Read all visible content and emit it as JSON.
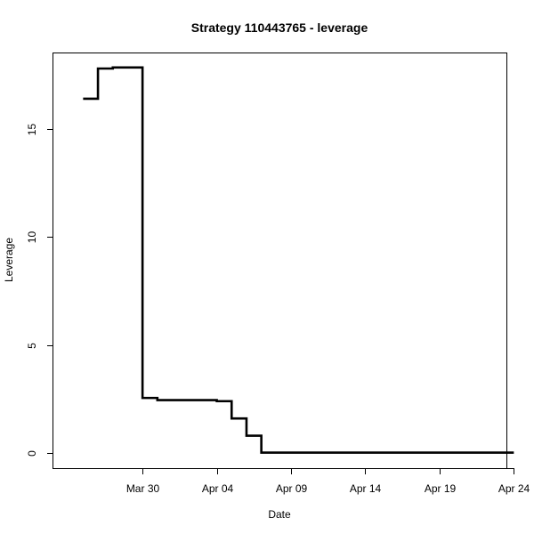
{
  "chart_data": {
    "type": "line",
    "title": "Strategy 110443765 - leverage",
    "xlabel": "Date",
    "ylabel": "Leverage",
    "step": true,
    "grid": false,
    "legend": "none",
    "xlim": [
      -2.0,
      28.5
    ],
    "ylim": [
      -0.7,
      18.5
    ],
    "x_ticks": [
      {
        "value": 4,
        "label": "Mar 30"
      },
      {
        "value": 9,
        "label": "Apr 04"
      },
      {
        "value": 14,
        "label": "Apr 09"
      },
      {
        "value": 19,
        "label": "Apr 14"
      },
      {
        "value": 24,
        "label": "Apr 19"
      },
      {
        "value": 29,
        "label": "Apr 24"
      }
    ],
    "y_ticks": [
      {
        "value": 0,
        "label": "0"
      },
      {
        "value": 5,
        "label": "5"
      },
      {
        "value": 10,
        "label": "10"
      },
      {
        "value": 15,
        "label": "15"
      }
    ],
    "series": [
      {
        "name": "leverage",
        "x": [
          0,
          1,
          2,
          4,
          5,
          9,
          10,
          11,
          12,
          29
        ],
        "y": [
          16.4,
          17.8,
          17.85,
          2.55,
          2.45,
          2.4,
          1.6,
          0.8,
          0.02,
          0.02
        ]
      }
    ]
  }
}
